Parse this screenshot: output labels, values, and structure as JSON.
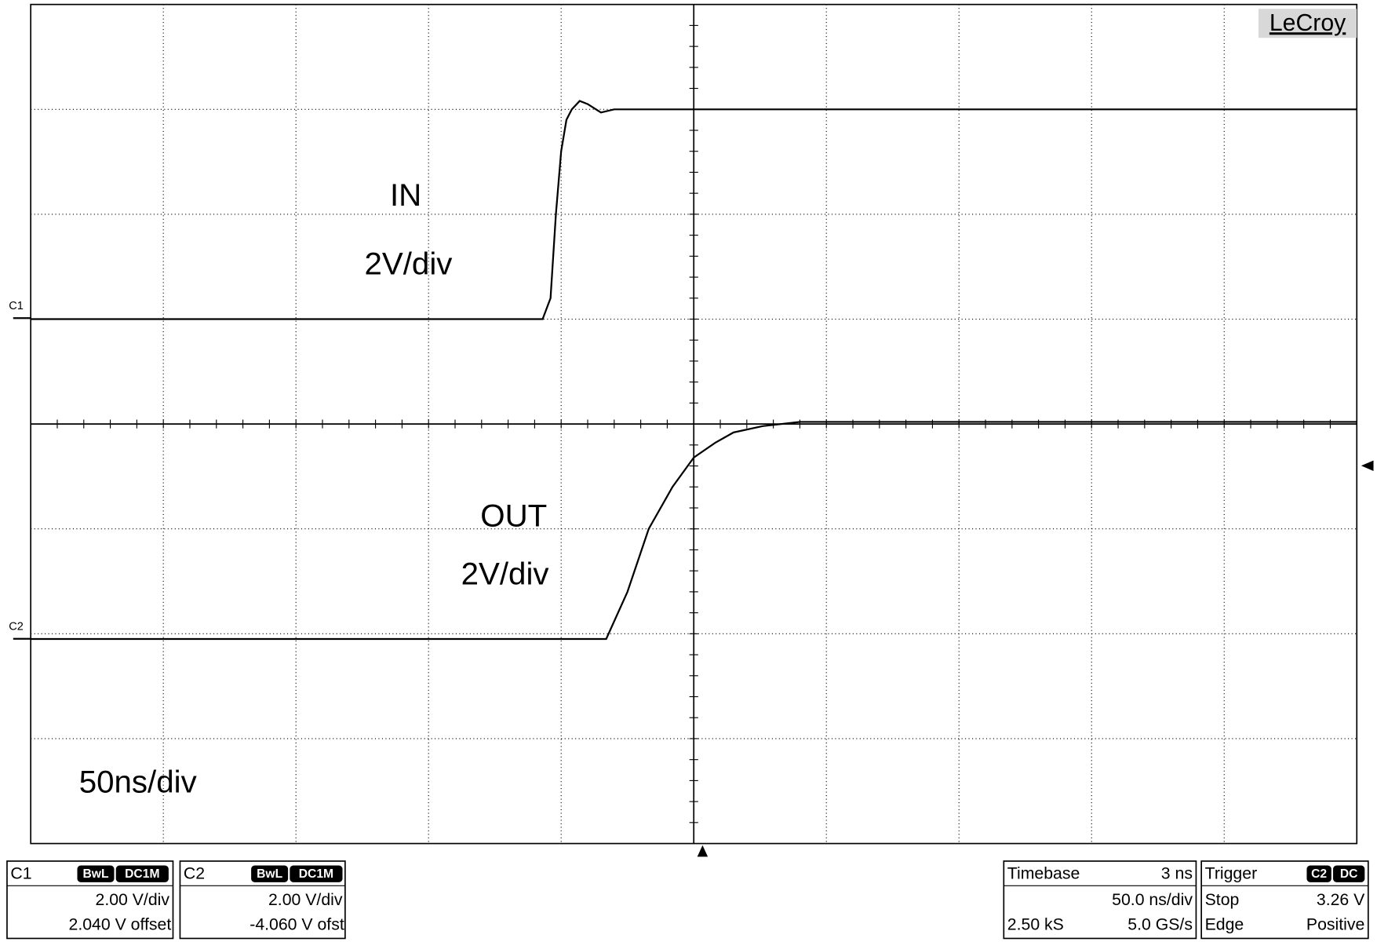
{
  "brand": "LeCroy",
  "chart_data": {
    "type": "line",
    "xlim": [
      -250,
      250
    ],
    "ylim": [
      -4,
      4
    ],
    "grid": true,
    "timebase_label": "50ns/div",
    "series": [
      {
        "name": "IN",
        "scale": "2V/div",
        "channel": "C1",
        "color": "#000000",
        "x": [
          -250,
          -57,
          -54,
          -52,
          -50,
          -48,
          -46,
          -43,
          -40,
          -35,
          -30,
          250
        ],
        "values": [
          1.0,
          1.0,
          1.2,
          2.0,
          2.6,
          2.9,
          3.0,
          3.08,
          3.05,
          2.97,
          3.0,
          3.0
        ]
      },
      {
        "name": "OUT",
        "scale": "2V/div",
        "channel": "C2",
        "color": "#000000",
        "x": [
          -250,
          -33,
          -25,
          -17,
          -8,
          0,
          8,
          15,
          26,
          40,
          250
        ],
        "values": [
          -2.05,
          -2.05,
          -1.6,
          -1.0,
          -0.6,
          -0.32,
          -0.18,
          -0.08,
          -0.02,
          0.02,
          0.02
        ]
      }
    ]
  },
  "panels": {
    "c1": {
      "title": "C1",
      "badges": [
        "BwL",
        "DC1M"
      ],
      "scale": "2.00 V/div",
      "offset": "2.040 V offset"
    },
    "c2": {
      "title": "C2",
      "badges": [
        "BwL",
        "DC1M"
      ],
      "scale": "2.00 V/div",
      "offset": "-4.060 V ofst"
    },
    "timebase": {
      "title": "Timebase",
      "delay": "3 ns",
      "per_div": "50.0 ns/div",
      "samples": "2.50 kS",
      "rate": "5.0 GS/s"
    },
    "trigger": {
      "title": "Trigger",
      "badges": [
        "C2",
        "DC"
      ],
      "mode": "Stop",
      "level": "3.26 V",
      "kind": "Edge",
      "slope": "Positive"
    }
  }
}
